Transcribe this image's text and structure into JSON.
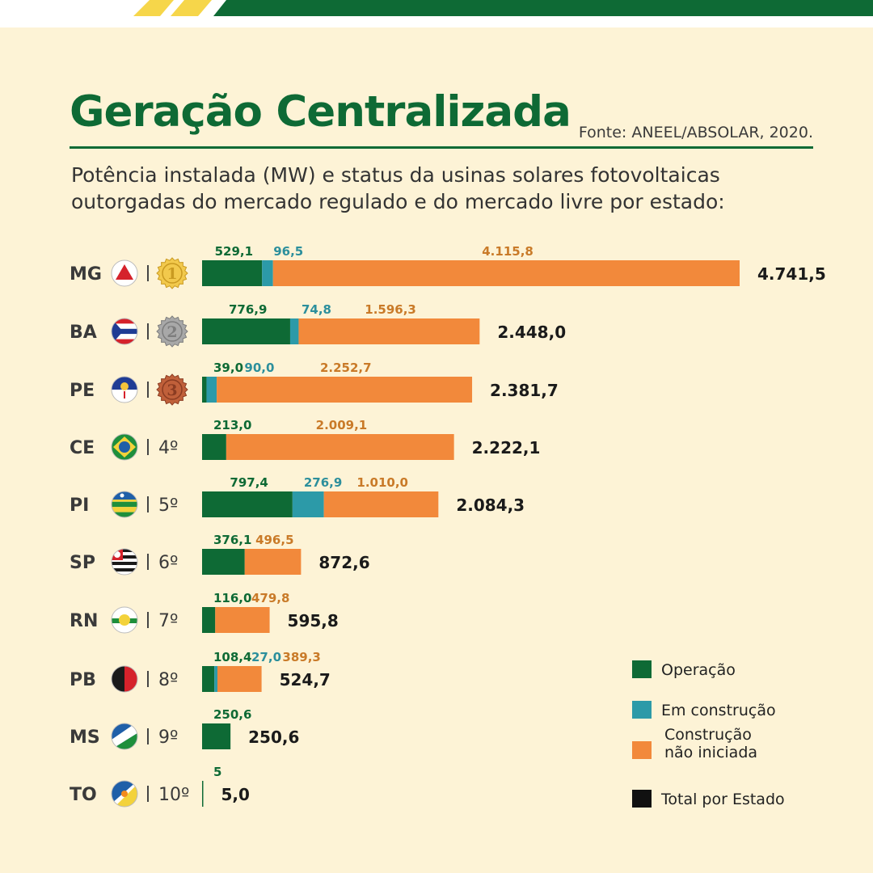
{
  "header": {
    "title": "Geração Centralizada",
    "source": "Fonte: ANEEL/ABSOLAR, 2020.",
    "subtitle": "Potência instalada (MW) e status da usinas solares fotovoltaicas outorgadas do mercado regulado e do mercado livre por estado:"
  },
  "colors": {
    "operacao": "#0e6a35",
    "construcao": "#2c9aa8",
    "nao_iniciada": "#f2893b",
    "total": "#111111",
    "brand_green": "#0e6a35",
    "brand_yellow": "#f6d64a"
  },
  "chart_data": {
    "type": "bar",
    "orientation": "horizontal",
    "stacked": true,
    "title": "Geração Centralizada",
    "unit": "MW",
    "legend_position": "bottom-right",
    "categories": [
      "MG",
      "BA",
      "PE",
      "CE",
      "PI",
      "SP",
      "RN",
      "PB",
      "MS",
      "TO"
    ],
    "ranks": [
      "1",
      "2",
      "3",
      "4º",
      "5º",
      "6º",
      "7º",
      "8º",
      "9º",
      "10º"
    ],
    "series": [
      {
        "name": "Operação",
        "values": [
          529.1,
          776.9,
          39.0,
          213.0,
          797.4,
          376.1,
          116.0,
          108.4,
          250.6,
          5.0
        ],
        "labels": [
          "529,1",
          "776,9",
          "39,0",
          "213,0",
          "797,4",
          "376,1",
          "116,0",
          "108,4",
          "250,6",
          "5"
        ]
      },
      {
        "name": "Em construção",
        "values": [
          96.5,
          74.8,
          90.0,
          0,
          276.9,
          0,
          0,
          27.0,
          0,
          0
        ],
        "labels": [
          "96,5",
          "74,8",
          "90,0",
          "",
          "276,9",
          "",
          "",
          "27,0",
          "",
          ""
        ]
      },
      {
        "name": "Construção não iniciada",
        "values": [
          4115.8,
          1596.3,
          2252.7,
          2009.1,
          1010.0,
          496.5,
          479.8,
          389.3,
          0,
          0
        ],
        "labels": [
          "4.115,8",
          "1.596,3",
          "2.252,7",
          "2.009,1",
          "1.010,0",
          "496,5",
          "479,8",
          "389,3",
          "",
          ""
        ]
      }
    ],
    "totals": [
      4741.5,
      2448.0,
      2381.7,
      2222.1,
      2084.3,
      872.6,
      595.8,
      524.7,
      250.6,
      5.0
    ],
    "total_labels": [
      "4.741,5",
      "2.448,0",
      "2.381,7",
      "2.222,1",
      "2.084,3",
      "872,6",
      "595,8",
      "524,7",
      "250,6",
      "5,0"
    ],
    "legend": [
      "Operação",
      "Em construção",
      "Construção\nnão iniciada",
      "Total por Estado"
    ]
  }
}
